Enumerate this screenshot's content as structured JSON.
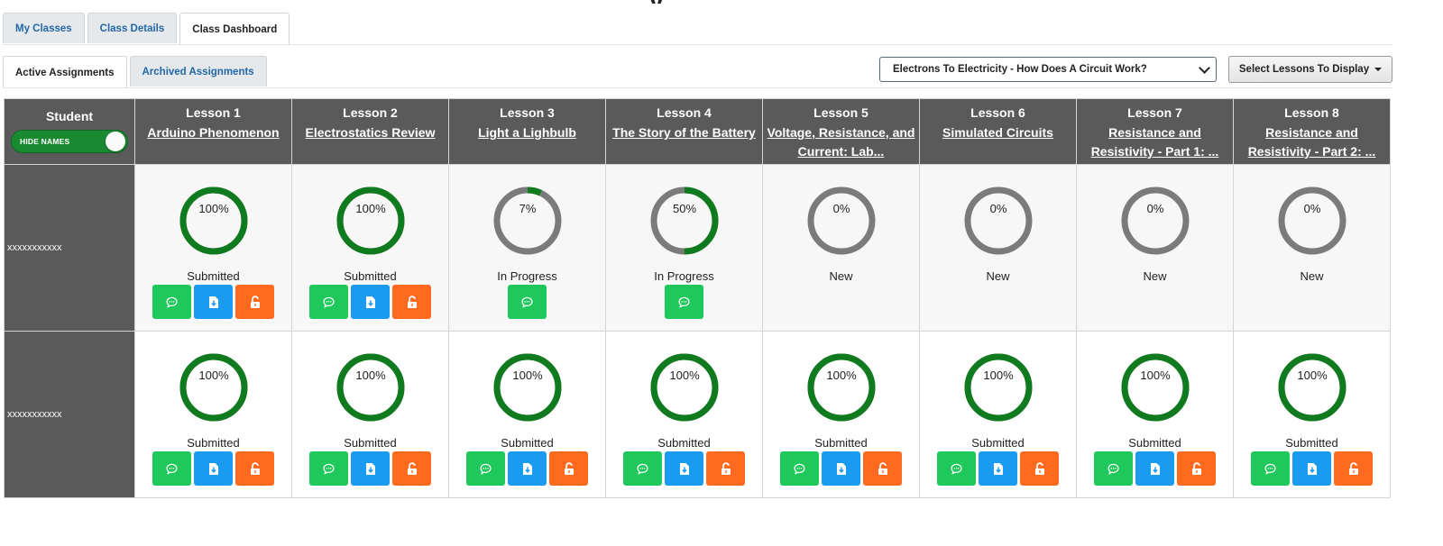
{
  "page": {
    "title_fragment": "y"
  },
  "main_tabs": [
    {
      "label": "My Classes",
      "active": false
    },
    {
      "label": "Class Details",
      "active": false
    },
    {
      "label": "Class Dashboard",
      "active": true
    }
  ],
  "sub_tabs": [
    {
      "label": "Active Assignments",
      "active": true
    },
    {
      "label": "Archived Assignments",
      "active": false
    }
  ],
  "unit_select": {
    "value": "Electrons To Electricity - How Does A Circuit Work?"
  },
  "lesson_display_button": {
    "label": "Select Lessons To Display"
  },
  "table": {
    "student_header": "Student",
    "hide_names_toggle": {
      "label": "HIDE NAMES",
      "on": true
    },
    "lessons": [
      {
        "number": "Lesson 1",
        "title": "Arduino Phenomenon"
      },
      {
        "number": "Lesson 2",
        "title": "Electrostatics Review"
      },
      {
        "number": "Lesson 3",
        "title": "Light a Lighbulb"
      },
      {
        "number": "Lesson 4",
        "title": "The Story of the Battery"
      },
      {
        "number": "Lesson 5",
        "title": "Voltage, Resistance, and Current: Lab..."
      },
      {
        "number": "Lesson 6",
        "title": "Simulated Circuits"
      },
      {
        "number": "Lesson 7",
        "title": "Resistance and Resistivity - Part 1: ..."
      },
      {
        "number": "Lesson 8",
        "title": "Resistance and Resistivity - Part 2: ..."
      }
    ],
    "students": [
      {
        "name": "xxxxxxxxxxx",
        "progress": [
          {
            "percent": 100,
            "label": "100%",
            "status": "Submitted",
            "actions": [
              "chat",
              "download",
              "unlock"
            ]
          },
          {
            "percent": 100,
            "label": "100%",
            "status": "Submitted",
            "actions": [
              "chat",
              "download",
              "unlock"
            ]
          },
          {
            "percent": 7,
            "label": "7%",
            "status": "In Progress",
            "actions": [
              "chat"
            ]
          },
          {
            "percent": 50,
            "label": "50%",
            "status": "In Progress",
            "actions": [
              "chat"
            ]
          },
          {
            "percent": 0,
            "label": "0%",
            "status": "New",
            "actions": []
          },
          {
            "percent": 0,
            "label": "0%",
            "status": "New",
            "actions": []
          },
          {
            "percent": 0,
            "label": "0%",
            "status": "New",
            "actions": []
          },
          {
            "percent": 0,
            "label": "0%",
            "status": "New",
            "actions": []
          }
        ]
      },
      {
        "name": "xxxxxxxxxxx",
        "progress": [
          {
            "percent": 100,
            "label": "100%",
            "status": "Submitted",
            "actions": [
              "chat",
              "download",
              "unlock"
            ]
          },
          {
            "percent": 100,
            "label": "100%",
            "status": "Submitted",
            "actions": [
              "chat",
              "download",
              "unlock"
            ]
          },
          {
            "percent": 100,
            "label": "100%",
            "status": "Submitted",
            "actions": [
              "chat",
              "download",
              "unlock"
            ]
          },
          {
            "percent": 100,
            "label": "100%",
            "status": "Submitted",
            "actions": [
              "chat",
              "download",
              "unlock"
            ]
          },
          {
            "percent": 100,
            "label": "100%",
            "status": "Submitted",
            "actions": [
              "chat",
              "download",
              "unlock"
            ]
          },
          {
            "percent": 100,
            "label": "100%",
            "status": "Submitted",
            "actions": [
              "chat",
              "download",
              "unlock"
            ]
          },
          {
            "percent": 100,
            "label": "100%",
            "status": "Submitted",
            "actions": [
              "chat",
              "download",
              "unlock"
            ]
          },
          {
            "percent": 100,
            "label": "100%",
            "status": "Submitted",
            "actions": [
              "chat",
              "download",
              "unlock"
            ]
          }
        ]
      }
    ]
  },
  "colors": {
    "progress_fill": "#0f7a1e",
    "progress_track": "#7b7b7b",
    "header_bg": "#5a5a5a",
    "chat_button": "#1ec85a",
    "download_button": "#1a9bf0",
    "unlock_button": "#ff6a1f"
  },
  "icons": {
    "chat": "chat-bubble-icon",
    "download": "file-download-icon",
    "unlock": "unlock-icon"
  }
}
